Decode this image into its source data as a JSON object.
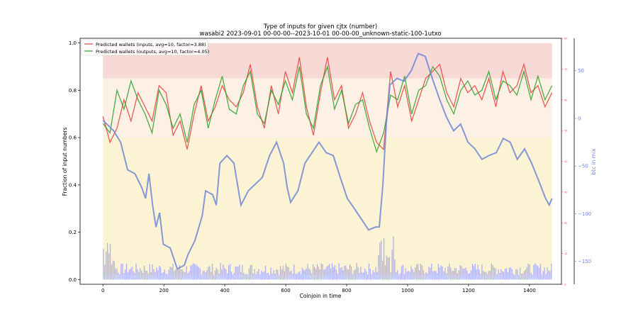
{
  "chart_data": {
    "type": "line",
    "title": "Type of inputs for given cjtx (number)",
    "subtitle": "wasabi2 2023-09-01 00-00-00--2023-10-01 00-00-00_unknown-static-100-1utxo",
    "xlabel": "Coinjoin in time",
    "ylabel": "Fraction of input numbers",
    "y2label": "btc in mix",
    "xlim": [
      -75,
      1505
    ],
    "ylim": [
      -0.02,
      1.02
    ],
    "y_red_lim": [
      0,
      80
    ],
    "y_btc_lim": [
      -174,
      84
    ],
    "xticks": [
      0,
      200,
      400,
      600,
      800,
      1000,
      1200,
      1400
    ],
    "yticks": [
      "0.0",
      "0.2",
      "0.4",
      "0.6",
      "0.8",
      "1.0"
    ],
    "y_red_ticks": [
      0,
      10,
      20,
      30,
      40,
      50,
      60,
      70,
      80
    ],
    "y_btc_ticks": [
      50,
      0,
      -50,
      -100,
      -150
    ],
    "legend_position": "top-left",
    "series": [
      {
        "name": "Predicted wallets (inputs, avg=10, factor=3.88)",
        "color": "#e8413c",
        "x_range": [
          0,
          1474
        ],
        "values": [
          0.69,
          0.58,
          0.64,
          0.76,
          0.67,
          0.79,
          0.73,
          0.67,
          0.82,
          0.79,
          0.61,
          0.67,
          0.55,
          0.7,
          0.82,
          0.67,
          0.73,
          0.82,
          0.76,
          0.73,
          0.79,
          0.91,
          0.73,
          0.64,
          0.82,
          0.7,
          0.88,
          0.79,
          0.94,
          0.73,
          0.61,
          0.79,
          0.94,
          0.76,
          0.82,
          0.64,
          0.7,
          0.79,
          0.67,
          0.58,
          0.55,
          0.88,
          0.73,
          0.82,
          0.67,
          0.76,
          0.85,
          0.88,
          0.91,
          0.79,
          0.73,
          0.85,
          0.79,
          0.82,
          0.76,
          0.85,
          0.73,
          0.88,
          0.79,
          0.82,
          0.91,
          0.79,
          0.82,
          0.73,
          0.79
        ]
      },
      {
        "name": "Predicted wallets (outputs, avg=10, factor=4.05)",
        "color": "#2ca02c",
        "x_range": [
          0,
          1474
        ],
        "values": [
          0.66,
          0.62,
          0.8,
          0.72,
          0.84,
          0.76,
          0.7,
          0.62,
          0.8,
          0.74,
          0.64,
          0.7,
          0.58,
          0.74,
          0.8,
          0.64,
          0.76,
          0.86,
          0.72,
          0.7,
          0.82,
          0.88,
          0.7,
          0.66,
          0.8,
          0.74,
          0.84,
          0.76,
          0.9,
          0.7,
          0.64,
          0.82,
          0.9,
          0.72,
          0.8,
          0.66,
          0.74,
          0.76,
          0.64,
          0.54,
          0.62,
          0.78,
          0.76,
          0.86,
          0.7,
          0.8,
          0.82,
          0.9,
          0.86,
          0.76,
          0.7,
          0.8,
          0.84,
          0.78,
          0.8,
          0.88,
          0.76,
          0.84,
          0.82,
          0.78,
          0.88,
          0.76,
          0.86,
          0.76,
          0.82
        ]
      },
      {
        "name": "btc in mix",
        "color": "#6f86d8",
        "axis": "btc",
        "x": [
          0,
          35,
          58,
          81,
          105,
          128,
          140,
          151,
          163,
          174,
          186,
          198,
          221,
          244,
          267,
          279,
          302,
          326,
          337,
          360,
          372,
          384,
          407,
          430,
          453,
          477,
          500,
          523,
          547,
          570,
          593,
          605,
          616,
          640,
          663,
          686,
          709,
          733,
          756,
          779,
          802,
          826,
          849,
          872,
          895,
          907,
          919,
          930,
          942,
          965,
          988,
          1012,
          1035,
          1058,
          1081,
          1105,
          1128,
          1151,
          1174,
          1198,
          1221,
          1244,
          1267,
          1291,
          1314,
          1337,
          1360,
          1384,
          1407,
          1430,
          1453,
          1465,
          1474
        ],
        "values": [
          -2,
          -13,
          -25,
          -54,
          -58,
          -73,
          -84,
          -58,
          -91,
          -114,
          -99,
          -132,
          -136,
          -158,
          -154,
          -143,
          -128,
          -102,
          -76,
          -80,
          -91,
          -47,
          -39,
          -47,
          -91,
          -76,
          -69,
          -62,
          -39,
          -25,
          -47,
          -73,
          -88,
          -76,
          -47,
          -36,
          -25,
          -36,
          -39,
          -62,
          -84,
          -95,
          -106,
          -117,
          -114,
          -114,
          -69,
          -6,
          35,
          42,
          39,
          50,
          68,
          65,
          42,
          20,
          1,
          -13,
          -6,
          -25,
          -32,
          -43,
          -39,
          -36,
          -21,
          -25,
          -43,
          -32,
          -47,
          -65,
          -84,
          -91,
          -84
        ]
      }
    ]
  }
}
